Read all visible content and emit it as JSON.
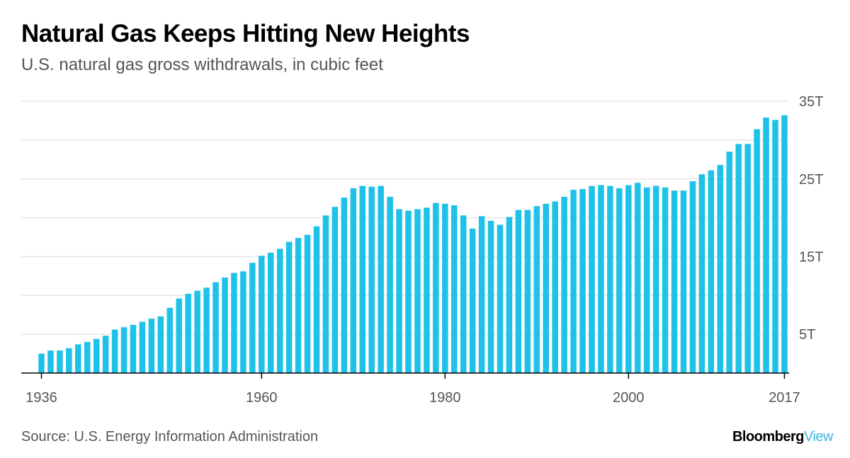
{
  "header": {
    "title": "Natural Gas Keeps Hitting New Heights",
    "subtitle": "U.S. natural gas gross withdrawals, in cubic feet"
  },
  "footer": {
    "source": "Source: U.S. Energy Information Administration",
    "brand_part1": "Bloomberg",
    "brand_part2": "View"
  },
  "colors": {
    "bar": "#1ec1e8",
    "brand_accent": "#3fb6e0",
    "grid": "#e6e6e6",
    "axis": "#000000",
    "tick_text": "#555555"
  },
  "chart_data": {
    "type": "bar",
    "title": "Natural Gas Keeps Hitting New Heights",
    "subtitle": "U.S. natural gas gross withdrawals, in cubic feet",
    "xlabel": "",
    "ylabel": "",
    "unit": "T",
    "ylim": [
      0,
      35
    ],
    "y_ticks": [
      5,
      15,
      25,
      35
    ],
    "y_tick_labels": [
      "5T",
      "15T",
      "25T",
      "35T"
    ],
    "grid": true,
    "x_tick_labels": [
      {
        "year": 1936,
        "label": "1936"
      },
      {
        "year": 1960,
        "label": "1960"
      },
      {
        "year": 1980,
        "label": "1980"
      },
      {
        "year": 2000,
        "label": "2000"
      },
      {
        "year": 2017,
        "label": "2017"
      }
    ],
    "categories": [
      1936,
      1937,
      1938,
      1939,
      1940,
      1941,
      1942,
      1943,
      1944,
      1945,
      1946,
      1947,
      1948,
      1949,
      1950,
      1951,
      1952,
      1953,
      1954,
      1955,
      1956,
      1957,
      1958,
      1959,
      1960,
      1961,
      1962,
      1963,
      1964,
      1965,
      1966,
      1967,
      1968,
      1969,
      1970,
      1971,
      1972,
      1973,
      1974,
      1975,
      1976,
      1977,
      1978,
      1979,
      1980,
      1981,
      1982,
      1983,
      1984,
      1985,
      1986,
      1987,
      1988,
      1989,
      1990,
      1991,
      1992,
      1993,
      1994,
      1995,
      1996,
      1997,
      1998,
      1999,
      2000,
      2001,
      2002,
      2003,
      2004,
      2005,
      2006,
      2007,
      2008,
      2009,
      2010,
      2011,
      2012,
      2013,
      2014,
      2015,
      2016,
      2017
    ],
    "values": [
      2.5,
      2.9,
      2.9,
      3.2,
      3.7,
      4.0,
      4.4,
      4.8,
      5.6,
      5.9,
      6.2,
      6.6,
      7.0,
      7.3,
      8.4,
      9.6,
      10.2,
      10.6,
      11.0,
      11.7,
      12.3,
      12.9,
      13.1,
      14.2,
      15.1,
      15.5,
      16.0,
      16.9,
      17.4,
      17.8,
      18.9,
      20.3,
      21.4,
      22.6,
      23.8,
      24.1,
      24.0,
      24.1,
      22.7,
      21.1,
      20.9,
      21.1,
      21.3,
      21.9,
      21.8,
      21.6,
      20.3,
      18.6,
      20.2,
      19.6,
      19.1,
      20.1,
      21.0,
      21.0,
      21.5,
      21.8,
      22.1,
      22.7,
      23.6,
      23.7,
      24.1,
      24.2,
      24.1,
      23.8,
      24.2,
      24.5,
      23.9,
      24.1,
      23.9,
      23.5,
      23.5,
      24.7,
      25.6,
      26.1,
      26.8,
      28.5,
      29.5,
      29.5,
      31.4,
      32.9,
      32.6,
      33.2
    ]
  }
}
